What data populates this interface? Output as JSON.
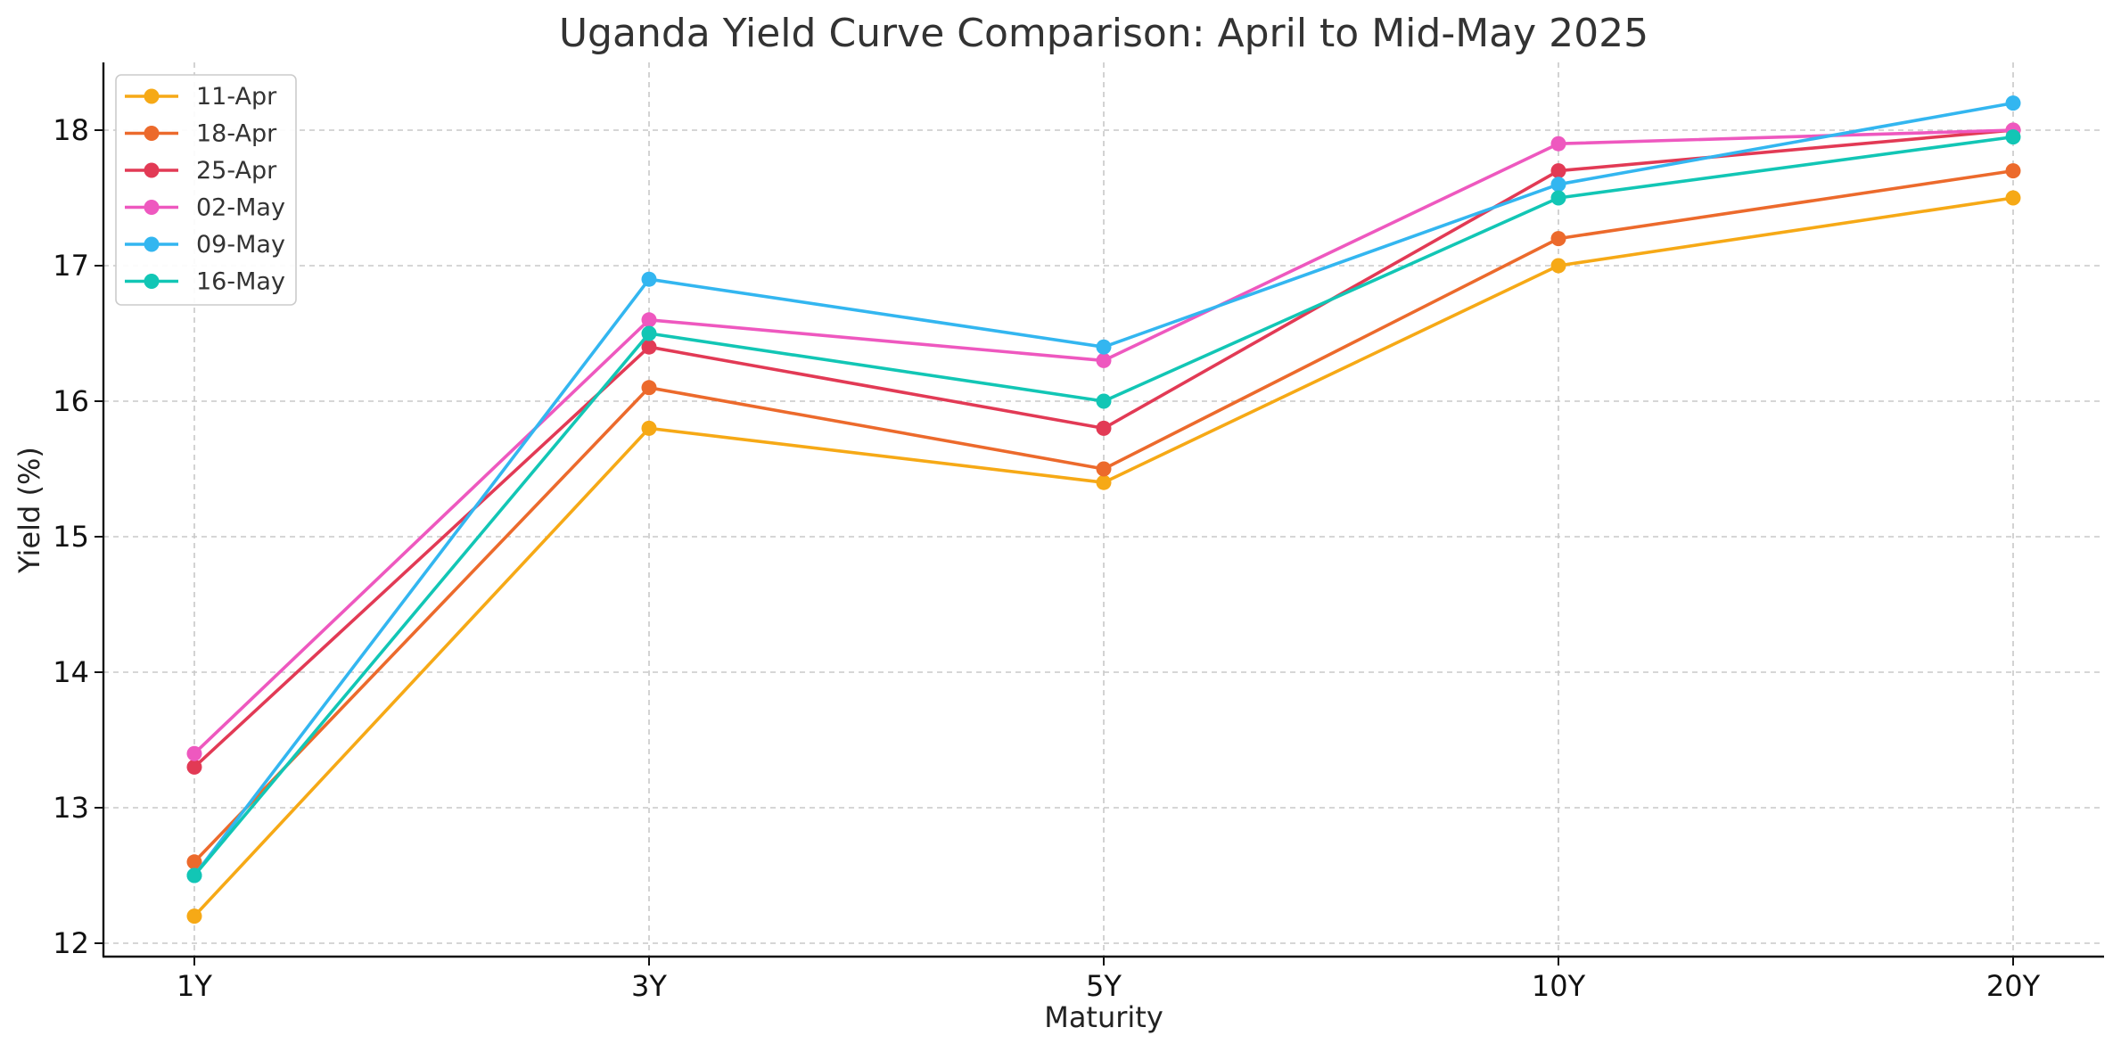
{
  "chart_data": {
    "type": "line",
    "title": "Uganda Yield Curve Comparison: April to Mid-May 2025",
    "xlabel": "Maturity",
    "ylabel": "Yield (%)",
    "categories": [
      "1Y",
      "3Y",
      "5Y",
      "10Y",
      "20Y"
    ],
    "ylim": [
      11.9,
      18.5
    ],
    "yticks": [
      12,
      13,
      14,
      15,
      16,
      17,
      18
    ],
    "grid": true,
    "legend_position": "top-left",
    "series": [
      {
        "name": "11-Apr",
        "color": "#F6A916",
        "values": [
          12.2,
          15.8,
          15.4,
          17.0,
          17.5
        ]
      },
      {
        "name": "18-Apr",
        "color": "#EC6A2C",
        "values": [
          12.6,
          16.1,
          15.5,
          17.2,
          17.7
        ]
      },
      {
        "name": "25-Apr",
        "color": "#E23A55",
        "values": [
          13.3,
          16.4,
          15.8,
          17.7,
          18.0
        ]
      },
      {
        "name": "02-May",
        "color": "#EE58BF",
        "values": [
          13.4,
          16.6,
          16.3,
          17.9,
          18.0
        ]
      },
      {
        "name": "09-May",
        "color": "#33B6F0",
        "values": [
          12.5,
          16.9,
          16.4,
          17.6,
          18.2
        ]
      },
      {
        "name": "16-May",
        "color": "#12C6B5",
        "values": [
          12.5,
          16.5,
          16.0,
          17.5,
          17.95
        ]
      }
    ]
  }
}
